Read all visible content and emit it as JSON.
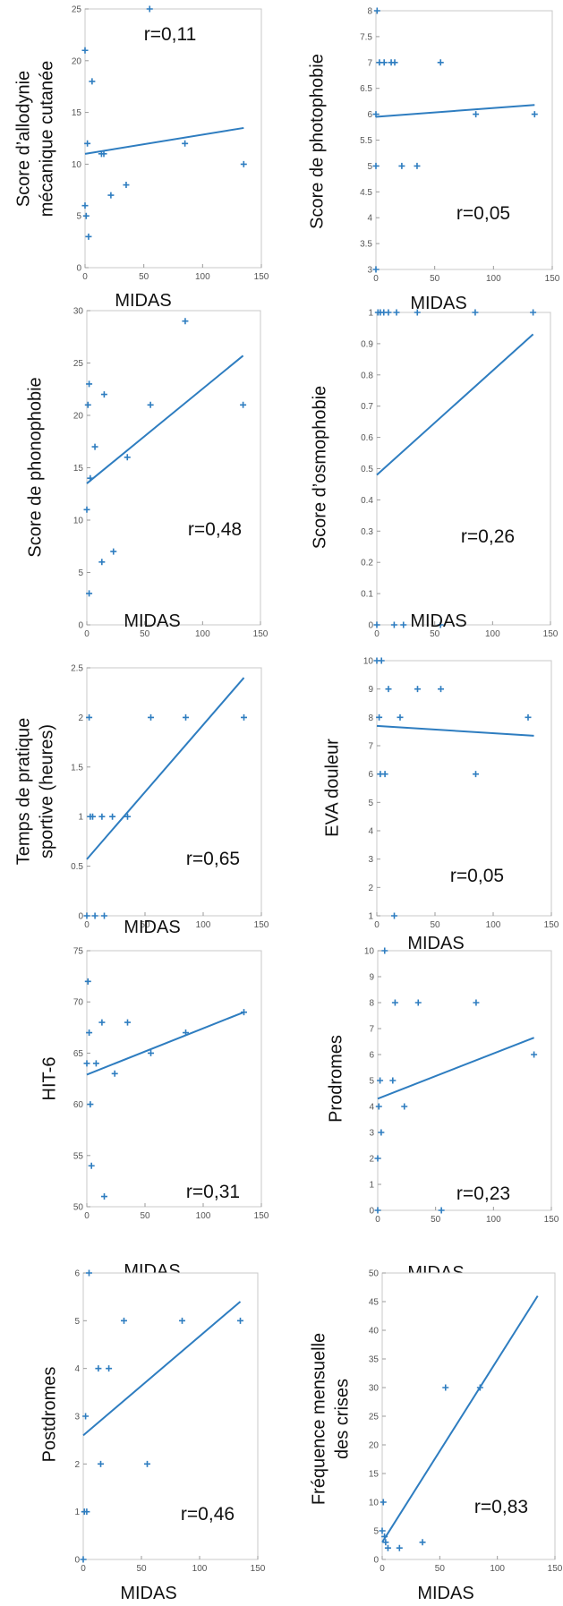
{
  "chart_data": [
    {
      "type": "scatter",
      "xlabel": "MIDAS",
      "ylabel_lines": [
        "Score d’allodynie",
        "mécanique cutanée"
      ],
      "annotation": "r=0,11",
      "xlim": [
        0,
        150
      ],
      "xticks": [
        0,
        50,
        100,
        150
      ],
      "ylim": [
        0,
        25
      ],
      "yticks": [
        0,
        5,
        10,
        15,
        20,
        25
      ],
      "points": [
        [
          0,
          21
        ],
        [
          0,
          6
        ],
        [
          1,
          5
        ],
        [
          2,
          12
        ],
        [
          3,
          3
        ],
        [
          6,
          18
        ],
        [
          14,
          11
        ],
        [
          16,
          11
        ],
        [
          22,
          7
        ],
        [
          35,
          8
        ],
        [
          55,
          25
        ],
        [
          85,
          12
        ],
        [
          135,
          10
        ]
      ],
      "trend": [
        [
          0,
          11
        ],
        [
          135,
          13.5
        ]
      ]
    },
    {
      "type": "scatter",
      "xlabel": "MIDAS",
      "ylabel_lines": [
        "Score de photophobie"
      ],
      "annotation": "r=0,05",
      "xlim": [
        0,
        150
      ],
      "xticks": [
        0,
        50,
        100,
        150
      ],
      "ylim": [
        3,
        8
      ],
      "yticks": [
        3,
        3.5,
        4,
        4.5,
        5,
        5.5,
        6,
        6.5,
        7,
        7.5,
        8
      ],
      "points": [
        [
          0,
          3
        ],
        [
          0,
          5
        ],
        [
          0,
          6
        ],
        [
          1,
          8
        ],
        [
          3,
          7
        ],
        [
          7,
          7
        ],
        [
          13,
          7
        ],
        [
          16,
          7
        ],
        [
          22,
          5
        ],
        [
          35,
          5
        ],
        [
          55,
          7
        ],
        [
          85,
          6
        ],
        [
          135,
          6
        ]
      ],
      "trend": [
        [
          0,
          5.95
        ],
        [
          135,
          6.18
        ]
      ]
    },
    {
      "type": "scatter",
      "xlabel": "MIDAS",
      "ylabel_lines": [
        "Score de phonophobie"
      ],
      "annotation": "r=0,48",
      "xlim": [
        0,
        150
      ],
      "xticks": [
        0,
        50,
        100,
        150
      ],
      "ylim": [
        0,
        30
      ],
      "yticks": [
        0,
        5,
        10,
        15,
        20,
        25,
        30
      ],
      "points": [
        [
          0,
          11
        ],
        [
          1,
          21
        ],
        [
          2,
          23
        ],
        [
          2,
          3
        ],
        [
          3,
          14
        ],
        [
          7,
          17
        ],
        [
          13,
          6
        ],
        [
          15,
          22
        ],
        [
          23,
          7
        ],
        [
          35,
          16
        ],
        [
          55,
          21
        ],
        [
          85,
          29
        ],
        [
          135,
          21
        ]
      ],
      "trend": [
        [
          0,
          13.5
        ],
        [
          135,
          25.7
        ]
      ]
    },
    {
      "type": "scatter",
      "xlabel": "MIDAS",
      "ylabel_lines": [
        "Score d’osmophobie"
      ],
      "annotation": "r=0,26",
      "xlim": [
        0,
        150
      ],
      "xticks": [
        0,
        50,
        100,
        150
      ],
      "ylim": [
        0,
        1
      ],
      "yticks": [
        0,
        0.1,
        0.2,
        0.3,
        0.4,
        0.5,
        0.6,
        0.7,
        0.8,
        0.9,
        1
      ],
      "points": [
        [
          0,
          0
        ],
        [
          1,
          1
        ],
        [
          3,
          1
        ],
        [
          6,
          1
        ],
        [
          10,
          1
        ],
        [
          15,
          0
        ],
        [
          17,
          1
        ],
        [
          23,
          0
        ],
        [
          35,
          1
        ],
        [
          55,
          0
        ],
        [
          85,
          1
        ],
        [
          135,
          1
        ]
      ],
      "trend": [
        [
          0,
          0.48
        ],
        [
          135,
          0.93
        ]
      ]
    },
    {
      "type": "scatter",
      "xlabel": "MIDAS",
      "ylabel_lines": [
        "Temps de pratique",
        "sportive (heures)"
      ],
      "annotation": "r=0,65",
      "xlim": [
        0,
        150
      ],
      "xticks": [
        0,
        50,
        100,
        150
      ],
      "ylim": [
        0,
        2.5
      ],
      "yticks": [
        0,
        0.5,
        1,
        1.5,
        2,
        2.5
      ],
      "points": [
        [
          0,
          0
        ],
        [
          2,
          2
        ],
        [
          3,
          1
        ],
        [
          5,
          1
        ],
        [
          7,
          0
        ],
        [
          13,
          1
        ],
        [
          15,
          0
        ],
        [
          22,
          1
        ],
        [
          35,
          1
        ],
        [
          55,
          2
        ],
        [
          85,
          2
        ],
        [
          135,
          2
        ]
      ],
      "trend": [
        [
          0,
          0.57
        ],
        [
          135,
          2.4
        ]
      ]
    },
    {
      "type": "scatter",
      "xlabel": "MIDAS",
      "ylabel_lines": [
        "EVA douleur"
      ],
      "annotation": "r=0,05",
      "xlim": [
        0,
        150
      ],
      "xticks": [
        0,
        50,
        100,
        150
      ],
      "ylim": [
        1,
        10
      ],
      "yticks": [
        1,
        2,
        3,
        4,
        5,
        6,
        7,
        8,
        9,
        10
      ],
      "points": [
        [
          0,
          10
        ],
        [
          2,
          8
        ],
        [
          3,
          6
        ],
        [
          4,
          10
        ],
        [
          7,
          6
        ],
        [
          10,
          9
        ],
        [
          15,
          1
        ],
        [
          20,
          8
        ],
        [
          35,
          9
        ],
        [
          55,
          9
        ],
        [
          85,
          6
        ],
        [
          130,
          8
        ]
      ],
      "trend": [
        [
          0,
          7.7
        ],
        [
          135,
          7.35
        ]
      ]
    },
    {
      "type": "scatter",
      "xlabel": "MIDAS",
      "ylabel_lines": [
        "HIT-6"
      ],
      "annotation": "r=0,31",
      "xlim": [
        0,
        150
      ],
      "xticks": [
        0,
        50,
        100,
        150
      ],
      "ylim": [
        50,
        75
      ],
      "yticks": [
        50,
        55,
        60,
        65,
        70,
        75
      ],
      "points": [
        [
          0,
          64
        ],
        [
          1,
          72
        ],
        [
          2,
          67
        ],
        [
          3,
          60
        ],
        [
          4,
          54
        ],
        [
          8,
          64
        ],
        [
          13,
          68
        ],
        [
          15,
          51
        ],
        [
          24,
          63
        ],
        [
          35,
          68
        ],
        [
          55,
          65
        ],
        [
          85,
          67
        ],
        [
          135,
          69
        ]
      ],
      "trend": [
        [
          0,
          62.9
        ],
        [
          135,
          69
        ]
      ]
    },
    {
      "type": "scatter",
      "xlabel": "MIDAS",
      "ylabel_lines": [
        "Prodromes"
      ],
      "annotation": "r=0,23",
      "xlim": [
        0,
        150
      ],
      "xticks": [
        0,
        50,
        100,
        150
      ],
      "ylim": [
        0,
        10
      ],
      "yticks": [
        0,
        1,
        2,
        3,
        4,
        5,
        6,
        7,
        8,
        9,
        10
      ],
      "points": [
        [
          0,
          0
        ],
        [
          0,
          2
        ],
        [
          1,
          4
        ],
        [
          2,
          5
        ],
        [
          3,
          3
        ],
        [
          6,
          10
        ],
        [
          13,
          5
        ],
        [
          15,
          8
        ],
        [
          23,
          4
        ],
        [
          35,
          8
        ],
        [
          55,
          0
        ],
        [
          85,
          8
        ],
        [
          135,
          6
        ]
      ],
      "trend": [
        [
          0,
          4.3
        ],
        [
          135,
          6.65
        ]
      ]
    },
    {
      "type": "scatter",
      "xlabel": "MIDAS",
      "ylabel_lines": [
        "Postdromes"
      ],
      "annotation": "r=0,46",
      "xlim": [
        0,
        150
      ],
      "xticks": [
        0,
        50,
        100,
        150
      ],
      "ylim": [
        0,
        6
      ],
      "yticks": [
        0,
        1,
        2,
        3,
        4,
        5,
        6
      ],
      "points": [
        [
          0,
          0
        ],
        [
          1,
          1
        ],
        [
          2,
          3
        ],
        [
          3,
          1
        ],
        [
          5,
          6
        ],
        [
          13,
          4
        ],
        [
          15,
          2
        ],
        [
          22,
          4
        ],
        [
          35,
          5
        ],
        [
          55,
          2
        ],
        [
          85,
          5
        ],
        [
          135,
          5
        ]
      ],
      "trend": [
        [
          0,
          2.6
        ],
        [
          135,
          5.4
        ]
      ]
    },
    {
      "type": "scatter",
      "xlabel": "MIDAS",
      "ylabel_lines": [
        "Fréquence mensuelle",
        "des crises"
      ],
      "annotation": "r=0,83",
      "xlim": [
        0,
        150
      ],
      "xticks": [
        0,
        50,
        100,
        150
      ],
      "ylim": [
        0,
        50
      ],
      "yticks": [
        0,
        5,
        10,
        15,
        20,
        25,
        30,
        35,
        40,
        45,
        50
      ],
      "points": [
        [
          0,
          5
        ],
        [
          1,
          10
        ],
        [
          2,
          4
        ],
        [
          3,
          3
        ],
        [
          5,
          2
        ],
        [
          15,
          2
        ],
        [
          35,
          3
        ],
        [
          55,
          30
        ],
        [
          85,
          30
        ]
      ],
      "trend": [
        [
          0,
          3
        ],
        [
          135,
          46
        ]
      ]
    }
  ]
}
